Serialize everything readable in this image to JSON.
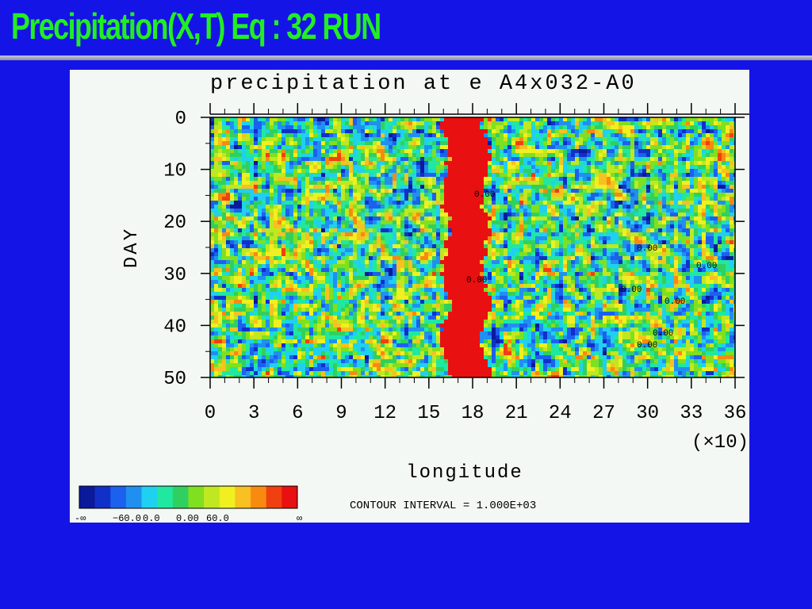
{
  "slide": {
    "title": "Precipitation(X,T) Eq  : 32 RUN"
  },
  "chart_data": {
    "type": "heatmap",
    "title": "precipitation at e A4x032-A0",
    "xlabel": "longitude",
    "ylabel": "DAY",
    "x_multiplier_label": "(×10)",
    "x_ticks": [
      "0",
      "3",
      "6",
      "9",
      "12",
      "15",
      "18",
      "21",
      "24",
      "27",
      "30",
      "33",
      "36"
    ],
    "y_ticks": [
      "0",
      "10",
      "20",
      "30",
      "40",
      "50"
    ],
    "xlim": [
      0,
      36
    ],
    "ylim": [
      0,
      50
    ],
    "y_inverted": true,
    "contour_interval_text": "CONTOUR INTERVAL = 1.000E+03",
    "contour_labels": [
      "0.00",
      "0.00",
      "0.00",
      "0.00",
      "0.00",
      "0.00",
      "0.00",
      "0.00"
    ],
    "colorbar": {
      "colors": [
        "#0a1a9a",
        "#1030c8",
        "#1c60ee",
        "#2090f0",
        "#20d0f0",
        "#20e8a0",
        "#30d060",
        "#80e020",
        "#c0e820",
        "#f0f020",
        "#f8c020",
        "#f88a10",
        "#f04010",
        "#e81010"
      ],
      "tick_labels": [
        "-∞",
        "−60.0",
        "0.0",
        "0.00",
        "60.0",
        "∞"
      ]
    },
    "feature": {
      "description_value": "persistent heavy precipitation band",
      "x_range": [
        16,
        18.8
      ],
      "y_range": [
        0,
        50
      ]
    }
  }
}
